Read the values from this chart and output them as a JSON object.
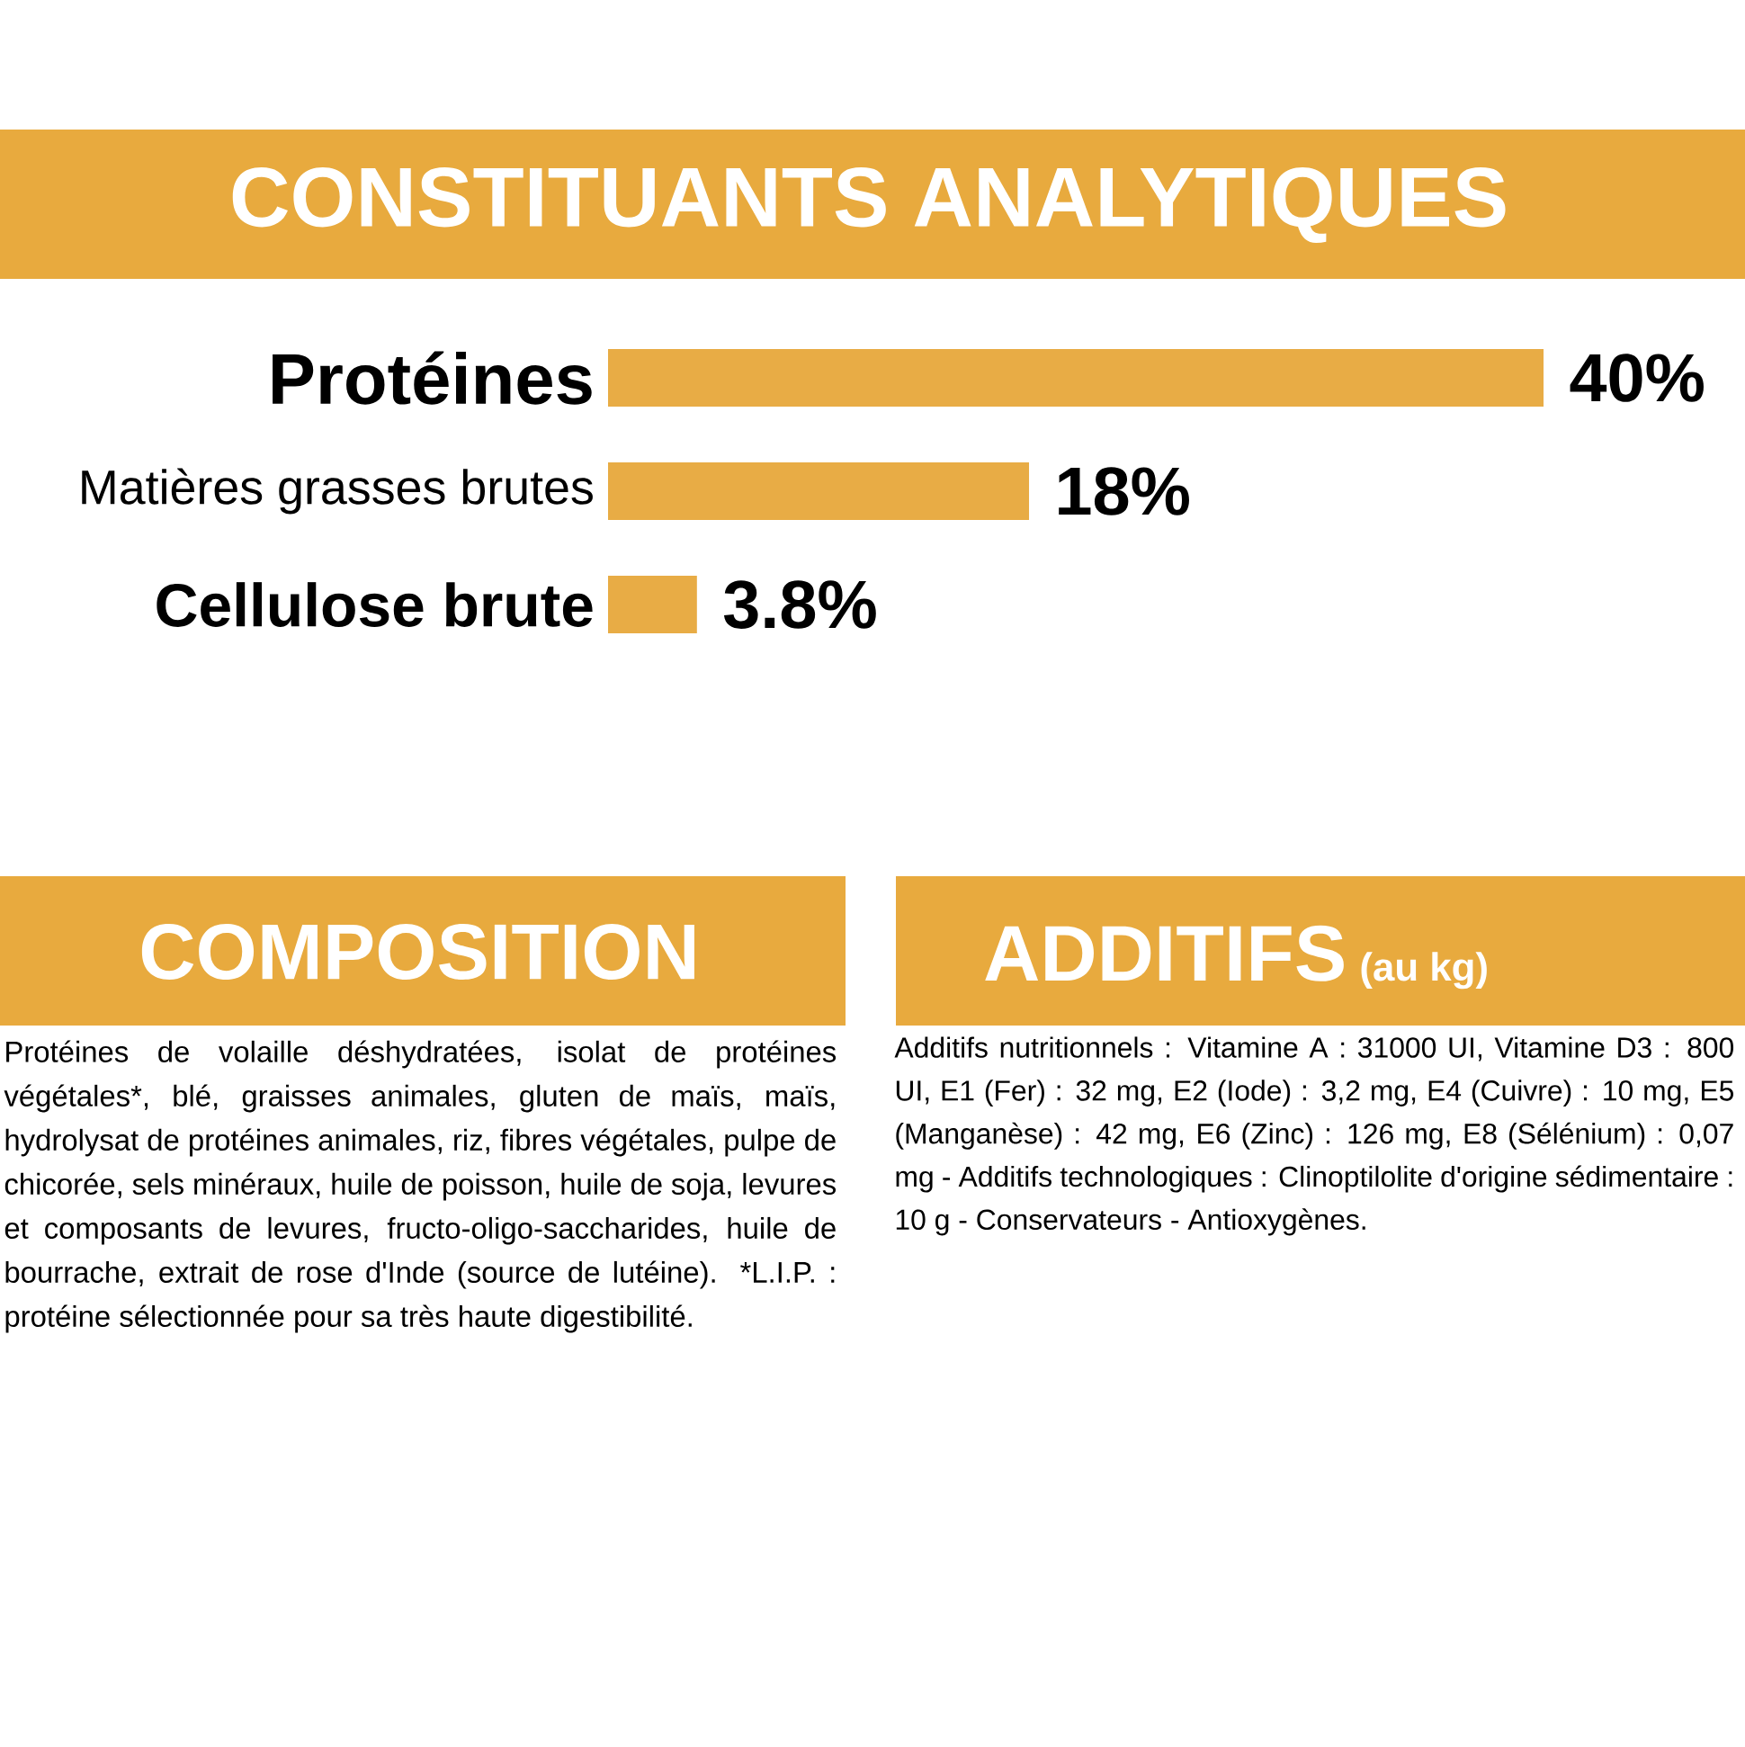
{
  "chart_data": {
    "type": "bar",
    "orientation": "horizontal",
    "title": "CONSTITUANTS ANALYTIQUES",
    "categories": [
      "Protéines",
      "Matières grasses brutes",
      "Cellulose brute"
    ],
    "values": [
      40,
      18,
      3.8
    ],
    "value_labels": [
      "40%",
      "18%",
      "3.8%"
    ],
    "color": "#e8ac45",
    "annotations": [
      "COMPOSITION",
      "Protéines de volaille déshydratées, isolat de protéines végétales*, blé, graisses animales, gluten de maïs, maïs, hydrolysat de protéines animales, riz, fibres végétales, pulpe de chicorée, sels minéraux, huile de poisson, huile de soja, levures et composants de levures, fructo-oligo-saccharides, huile de bourrache, extrait de rose d'Inde (source de lutéine). *L.I.P. : protéine sélectionnée pour sa très haute digestibilité.",
      "ADDITIFS",
      "(au kg)",
      "Additifs nutritionnels : Vitamine A : 31000 UI, Vitamine D3 : 800 UI, E1 (Fer) : 32 mg, E2 (Iode) : 3,2 mg, E4 (Cuivre) : 10 mg, E5 (Manganèse) : 42 mg, E6 (Zinc) : 126 mg, E8 (Sélénium) : 0,07 mg - Additifs technologiques : Clinoptilolite d'origine sédimentaire : 10 g - Conservateurs - Antioxygènes."
    ]
  }
}
